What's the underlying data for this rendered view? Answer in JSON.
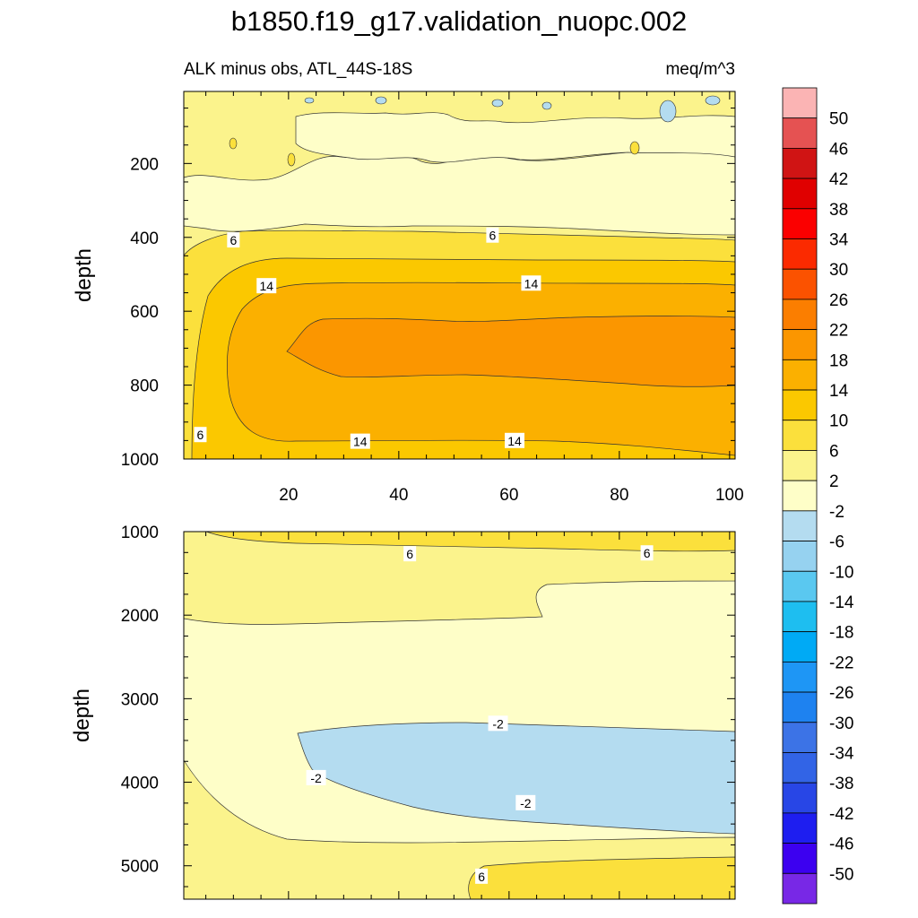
{
  "chart_data": [
    {
      "type": "contour",
      "panel": "upper",
      "title": "b1850.f19_g17.validation_nuopc.002",
      "left_subtitle": "ALK minus obs, ATL_44S-18S",
      "right_subtitle": "meq/m^3",
      "ylabel": "depth",
      "xlim": [
        1,
        101
      ],
      "ylim": [
        1000,
        5
      ],
      "x_ticks": [
        20,
        40,
        60,
        80,
        100
      ],
      "y_ticks": [
        200,
        400,
        600,
        800,
        1000
      ],
      "contour_labels": [
        {
          "text": "6",
          "x": 10,
          "y": 408
        },
        {
          "text": "6",
          "x": 57,
          "y": 395
        },
        {
          "text": "14",
          "x": 16,
          "y": 532
        },
        {
          "text": "14",
          "x": 64,
          "y": 525
        },
        {
          "text": "6",
          "x": 4,
          "y": 935
        },
        {
          "text": "14",
          "x": 33,
          "y": 953
        },
        {
          "text": "14",
          "x": 61,
          "y": 951
        }
      ]
    },
    {
      "type": "contour",
      "panel": "lower",
      "ylabel": "depth",
      "xlim": [
        1,
        101
      ],
      "ylim": [
        5400,
        1000
      ],
      "y_ticks": [
        1000,
        2000,
        3000,
        4000,
        5000
      ],
      "contour_labels": [
        {
          "text": "6",
          "x": 42,
          "y": 1270
        },
        {
          "text": "6",
          "x": 85,
          "y": 1260
        },
        {
          "text": "-2",
          "x": 58,
          "y": 3300
        },
        {
          "text": "-2",
          "x": 25,
          "y": 3950
        },
        {
          "text": "-2",
          "x": 63,
          "y": 4250
        },
        {
          "text": "6",
          "x": 55,
          "y": 5130
        }
      ]
    }
  ],
  "colorbar": {
    "labels": [
      "50",
      "46",
      "42",
      "38",
      "34",
      "30",
      "26",
      "22",
      "18",
      "14",
      "10",
      "6",
      "2",
      "-2",
      "-6",
      "-10",
      "-14",
      "-18",
      "-22",
      "-26",
      "-30",
      "-34",
      "-38",
      "-42",
      "-46",
      "-50"
    ],
    "colors": [
      "#fbb4b4",
      "#e55252",
      "#d01414",
      "#e00000",
      "#fb0000",
      "#fb2a00",
      "#fb5200",
      "#fb7e00",
      "#fb9600",
      "#fbb000",
      "#fbc800",
      "#fbe03c",
      "#fbf38c",
      "#fefec8",
      "#b4dcf0",
      "#96d2f0",
      "#5ac8f0",
      "#1ebef0",
      "#00aaf5",
      "#1e96f5",
      "#1e82f0",
      "#3c73e6",
      "#3264e6",
      "#2846e6",
      "#1e1ef0",
      "#3c00f0",
      "#7828e6"
    ]
  }
}
